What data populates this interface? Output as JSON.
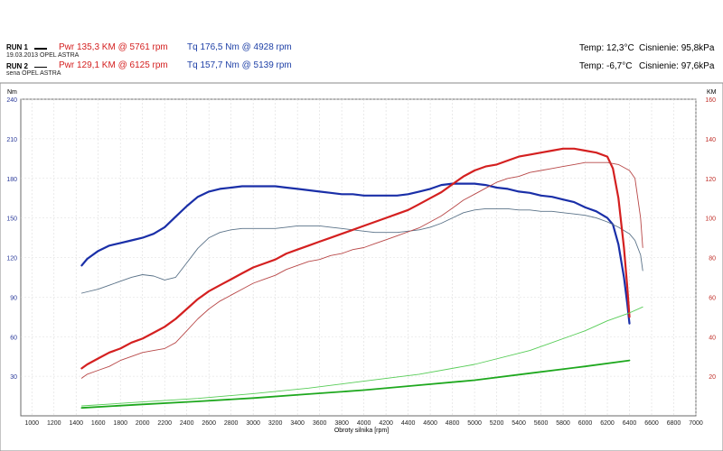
{
  "header": {
    "run1": {
      "label": "RUN 1",
      "date": "19.03.2013 OPEL ASTRA",
      "power": "Pwr  135,3 KM @ 5761 rpm",
      "torque": "Tq 176,5 Nm @ 4928 rpm",
      "temp": "Temp: 12,3°C",
      "pressure": "Cisnienie: 95,8kPa"
    },
    "run2": {
      "label": "RUN 2",
      "date": "sena OPEL ASTRA",
      "power": "Pwr  129,1 KM @ 6125 rpm",
      "torque": "Tq 157,7 Nm @ 5139 rpm",
      "temp": "Temp: -6,7°C",
      "pressure": "Cisnienie: 97,6kPa"
    }
  },
  "colors": {
    "power": "#d42020",
    "torque": "#1a2fa8",
    "loss": "#1ea81e",
    "left_axis": "#2a3a9a",
    "right_axis": "#c0302a"
  },
  "chart_data": {
    "type": "line",
    "xlabel": "Obroty silnika [rpm]",
    "ylabel_left": "Nm",
    "ylabel_right": "KM",
    "xlim": [
      900,
      7000
    ],
    "xticks": [
      1000,
      1200,
      1400,
      1600,
      1800,
      2000,
      2200,
      2400,
      2600,
      2800,
      3000,
      3200,
      3400,
      3600,
      3800,
      4000,
      4200,
      4400,
      4600,
      4800,
      5000,
      5200,
      5400,
      5600,
      5800,
      6000,
      6200,
      6400,
      6600,
      6800,
      7000
    ],
    "ylim_left": [
      0,
      240
    ],
    "yticks_left": [
      30,
      60,
      90,
      120,
      150,
      180,
      210,
      240
    ],
    "ylim_right": [
      0,
      160
    ],
    "yticks_right": [
      20,
      40,
      60,
      80,
      100,
      120,
      140,
      160
    ],
    "grid": true,
    "series": [
      {
        "key": "tq1",
        "axis": "left",
        "color": "#1a2fa8",
        "width": 2.2,
        "x": [
          1450,
          1500,
          1600,
          1700,
          1800,
          1900,
          2000,
          2100,
          2200,
          2300,
          2400,
          2500,
          2600,
          2700,
          2800,
          2900,
          3000,
          3100,
          3200,
          3300,
          3400,
          3500,
          3600,
          3700,
          3800,
          3900,
          4000,
          4100,
          4200,
          4300,
          4400,
          4500,
          4600,
          4700,
          4800,
          4900,
          5000,
          5100,
          5200,
          5300,
          5400,
          5500,
          5600,
          5700,
          5800,
          5900,
          6000,
          6100,
          6200,
          6250,
          6300,
          6350,
          6380,
          6400
        ],
        "y": [
          114,
          119,
          125,
          129,
          131,
          133,
          135,
          138,
          143,
          151,
          159,
          166,
          170,
          172,
          173,
          174,
          174,
          174,
          174,
          173,
          172,
          171,
          170,
          169,
          168,
          168,
          167,
          167,
          167,
          167,
          168,
          170,
          172,
          175,
          176,
          176,
          176,
          175,
          173,
          172,
          170,
          169,
          167,
          166,
          164,
          162,
          158,
          155,
          150,
          145,
          130,
          105,
          85,
          70
        ]
      },
      {
        "key": "tq2",
        "axis": "left",
        "color": "#5a7288",
        "width": 0.9,
        "x": [
          1450,
          1500,
          1600,
          1700,
          1800,
          1900,
          2000,
          2100,
          2200,
          2300,
          2400,
          2500,
          2600,
          2700,
          2800,
          2900,
          3000,
          3100,
          3200,
          3300,
          3400,
          3500,
          3600,
          3700,
          3800,
          3900,
          4000,
          4100,
          4200,
          4300,
          4400,
          4500,
          4600,
          4700,
          4800,
          4900,
          5000,
          5100,
          5200,
          5300,
          5400,
          5500,
          5600,
          5700,
          5800,
          5900,
          6000,
          6100,
          6200,
          6300,
          6400,
          6450,
          6500,
          6520
        ],
        "y": [
          93,
          94,
          96,
          99,
          102,
          105,
          107,
          106,
          103,
          105,
          116,
          127,
          135,
          139,
          141,
          142,
          142,
          142,
          142,
          143,
          144,
          144,
          144,
          143,
          142,
          141,
          140,
          139,
          139,
          139,
          140,
          141,
          143,
          146,
          150,
          154,
          156,
          157,
          157,
          157,
          156,
          156,
          155,
          155,
          154,
          153,
          152,
          150,
          147,
          143,
          138,
          133,
          122,
          110
        ]
      },
      {
        "key": "pwr1",
        "axis": "right",
        "color": "#d42020",
        "width": 2.2,
        "x": [
          1450,
          1500,
          1600,
          1700,
          1800,
          1900,
          2000,
          2100,
          2200,
          2300,
          2400,
          2500,
          2600,
          2700,
          2800,
          2900,
          3000,
          3100,
          3200,
          3300,
          3400,
          3500,
          3600,
          3700,
          3800,
          3900,
          4000,
          4100,
          4200,
          4300,
          4400,
          4500,
          4600,
          4700,
          4800,
          4900,
          5000,
          5100,
          5200,
          5300,
          5400,
          5500,
          5600,
          5700,
          5800,
          5900,
          6000,
          6100,
          6200,
          6250,
          6300,
          6350,
          6380,
          6400
        ],
        "y": [
          24,
          26,
          29,
          32,
          34,
          37,
          39,
          42,
          45,
          49,
          54,
          59,
          63,
          66,
          69,
          72,
          75,
          77,
          79,
          82,
          84,
          86,
          88,
          90,
          92,
          94,
          96,
          98,
          100,
          102,
          104,
          107,
          110,
          113,
          117,
          121,
          124,
          126,
          127,
          129,
          131,
          132,
          133,
          134,
          135,
          135,
          134,
          133,
          131,
          125,
          110,
          85,
          65,
          50
        ]
      },
      {
        "key": "pwr2",
        "axis": "right",
        "color": "#b84848",
        "width": 0.9,
        "x": [
          1450,
          1500,
          1600,
          1700,
          1800,
          1900,
          2000,
          2100,
          2200,
          2300,
          2400,
          2500,
          2600,
          2700,
          2800,
          2900,
          3000,
          3100,
          3200,
          3300,
          3400,
          3500,
          3600,
          3700,
          3800,
          3900,
          4000,
          4100,
          4200,
          4300,
          4400,
          4500,
          4600,
          4700,
          4800,
          4900,
          5000,
          5100,
          5200,
          5300,
          5400,
          5500,
          5600,
          5700,
          5800,
          5900,
          6000,
          6100,
          6200,
          6300,
          6400,
          6450,
          6500,
          6520
        ],
        "y": [
          19,
          21,
          23,
          25,
          28,
          30,
          32,
          33,
          34,
          37,
          43,
          49,
          54,
          58,
          61,
          64,
          67,
          69,
          71,
          74,
          76,
          78,
          79,
          81,
          82,
          84,
          85,
          87,
          89,
          91,
          93,
          95,
          98,
          101,
          105,
          109,
          112,
          115,
          118,
          120,
          121,
          123,
          124,
          125,
          126,
          127,
          128,
          128,
          128,
          127,
          124,
          120,
          100,
          85
        ]
      },
      {
        "key": "loss1",
        "axis": "right",
        "color": "#1ea81e",
        "width": 1.8,
        "x": [
          1450,
          2000,
          2500,
          3000,
          3500,
          4000,
          4500,
          5000,
          5500,
          6000,
          6400
        ],
        "y": [
          4,
          5.8,
          7.3,
          9,
          11,
          13,
          15.5,
          18,
          21.5,
          25,
          28
        ]
      },
      {
        "key": "loss2",
        "axis": "right",
        "color": "#56cc56",
        "width": 0.9,
        "x": [
          1450,
          2000,
          2500,
          3000,
          3500,
          4000,
          4500,
          5000,
          5500,
          6000,
          6200,
          6400,
          6520
        ],
        "y": [
          5,
          7,
          8.8,
          11.2,
          14,
          17.5,
          21,
          26,
          33,
          43,
          48,
          52,
          55
        ]
      }
    ]
  }
}
